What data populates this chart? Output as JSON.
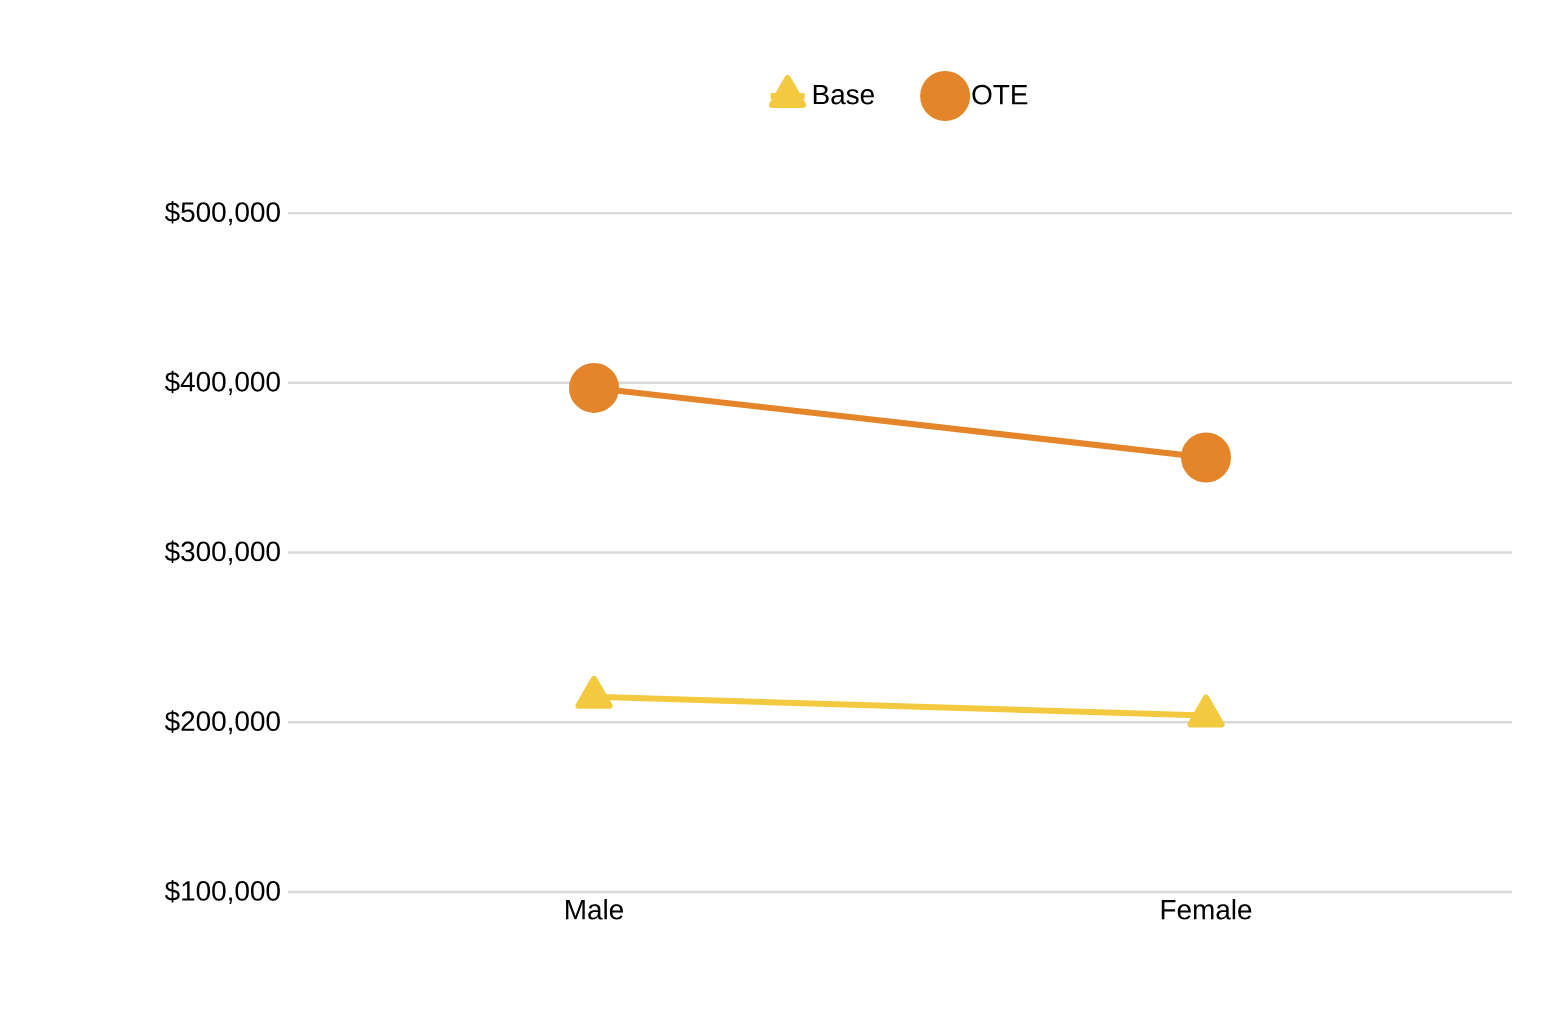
{
  "chart_data": {
    "type": "line",
    "categories": [
      "Male",
      "Female"
    ],
    "series": [
      {
        "name": "Base",
        "color": "#f3c940",
        "values": [
          215000,
          204000
        ],
        "marker": "triangle"
      },
      {
        "name": "OTE",
        "color": "#e5852a",
        "values": [
          397000,
          356000
        ],
        "marker": "circle"
      }
    ],
    "ylim": [
      100000,
      500000
    ],
    "yticks": [
      {
        "value": 100000,
        "label": "$100,000"
      },
      {
        "value": 200000,
        "label": "$200,000"
      },
      {
        "value": 300000,
        "label": "$300,000"
      },
      {
        "value": 400000,
        "label": "$400,000"
      },
      {
        "value": 500000,
        "label": "$500,000"
      }
    ],
    "grid": "y",
    "legend": "top",
    "line_style": "solid"
  }
}
